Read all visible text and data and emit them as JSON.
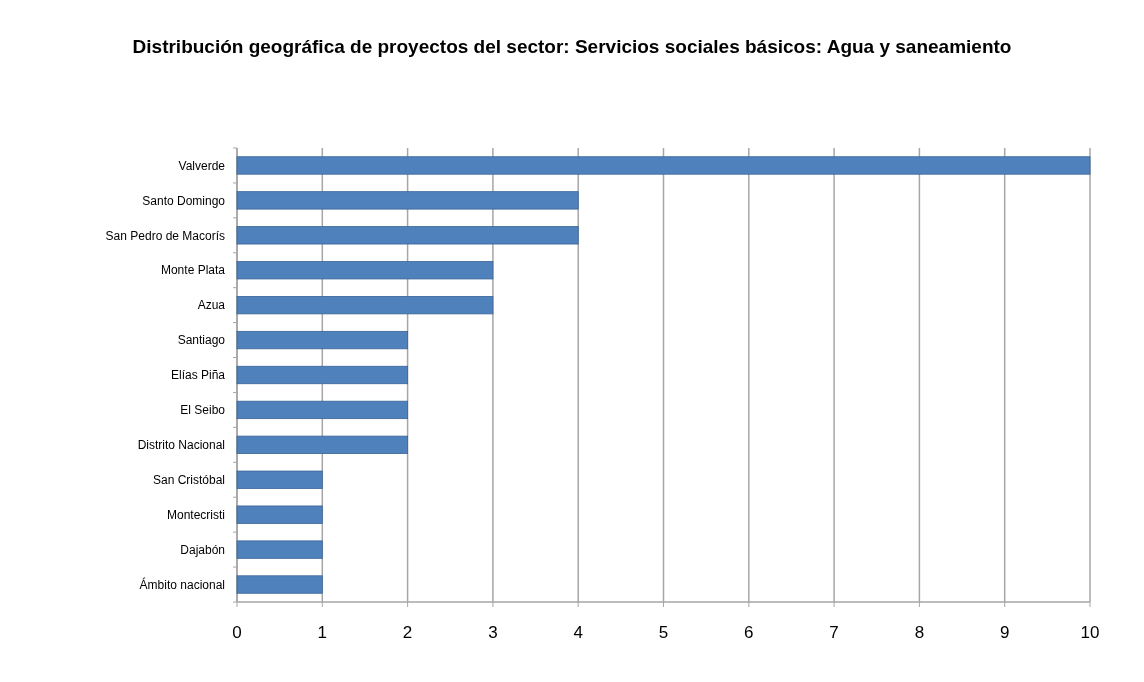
{
  "chart_data": {
    "type": "bar",
    "orientation": "horizontal",
    "title": "Distribución geográfica de proyectos del sector: Servicios sociales básicos: Agua y saneamiento",
    "categories": [
      "Valverde",
      "Santo Domingo",
      "San Pedro de Macorís",
      "Monte Plata",
      "Azua",
      "Santiago",
      "Elías Piña",
      "El Seibo",
      "Distrito Nacional",
      "San Cristóbal",
      "Montecristi",
      "Dajabón",
      "Ámbito nacional"
    ],
    "values": [
      10,
      4,
      4,
      3,
      3,
      2,
      2,
      2,
      2,
      1,
      1,
      1,
      1
    ],
    "color": "#4f81bd",
    "xlim": [
      0,
      10
    ],
    "xticks": [
      0,
      1,
      2,
      3,
      4,
      5,
      6,
      7,
      8,
      9,
      10
    ],
    "grid": "x"
  }
}
